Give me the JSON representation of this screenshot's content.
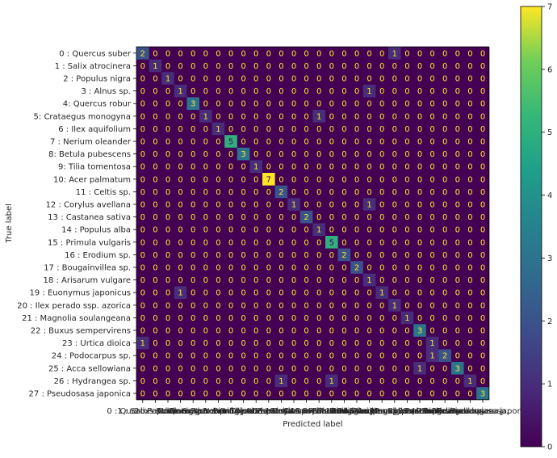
{
  "chart_data": {
    "type": "heatmap",
    "title": "",
    "xlabel": "Predicted label",
    "ylabel": "True label",
    "labels": [
      "0 : Quercus suber",
      "1 : Salix atrocinera",
      "2 : Populus nigra",
      "3 : Alnus sp.",
      "4: Quercus robur",
      "5: Crataegus monogyna",
      "6 : Ilex aquifolium",
      "7 : Nerium oleander",
      "8: Betula pubescens",
      "9: Tilia tomentosa",
      "10: Acer palmatum",
      "11 : Celtis sp.",
      "12 : Corylus avellana",
      "13 : Castanea sativa",
      "14 : Populus alba",
      "15 : Primula vulgaris",
      "16 : Erodium sp.",
      "17 : Bougainvillea sp.",
      "18 : Arisarum vulgare",
      "19 : Euonymus japonicus",
      "20 : Ilex perado ssp. azorica",
      "21 : Magnolia soulangeana",
      "22 : Buxus sempervirens",
      "23 : Urtica dioica",
      "24 : Podocarpus sp.",
      "25 : Acca sellowiana",
      "26 : Hydrangea sp.",
      "27 : Pseudosasa japonica"
    ],
    "nonzero": [
      [
        0,
        0,
        2
      ],
      [
        0,
        20,
        1
      ],
      [
        1,
        1,
        1
      ],
      [
        2,
        2,
        1
      ],
      [
        3,
        3,
        1
      ],
      [
        3,
        18,
        1
      ],
      [
        4,
        4,
        3
      ],
      [
        5,
        5,
        1
      ],
      [
        5,
        14,
        1
      ],
      [
        6,
        6,
        1
      ],
      [
        7,
        7,
        5
      ],
      [
        8,
        8,
        3
      ],
      [
        9,
        9,
        1
      ],
      [
        10,
        10,
        7
      ],
      [
        11,
        11,
        2
      ],
      [
        12,
        12,
        1
      ],
      [
        12,
        18,
        1
      ],
      [
        13,
        13,
        2
      ],
      [
        14,
        14,
        1
      ],
      [
        15,
        15,
        5
      ],
      [
        16,
        16,
        2
      ],
      [
        17,
        17,
        2
      ],
      [
        18,
        18,
        1
      ],
      [
        19,
        3,
        1
      ],
      [
        19,
        19,
        1
      ],
      [
        20,
        20,
        1
      ],
      [
        21,
        21,
        1
      ],
      [
        22,
        22,
        3
      ],
      [
        23,
        0,
        1
      ],
      [
        23,
        23,
        1
      ],
      [
        24,
        23,
        1
      ],
      [
        24,
        24,
        2
      ],
      [
        25,
        22,
        1
      ],
      [
        25,
        25,
        3
      ],
      [
        26,
        11,
        1
      ],
      [
        26,
        15,
        1
      ],
      [
        26,
        26,
        1
      ],
      [
        27,
        27,
        3
      ]
    ],
    "colorbar": {
      "min": 0,
      "max": 7,
      "ticks": [
        0,
        1,
        2,
        3,
        4,
        5,
        6,
        7
      ],
      "colormap": "viridis"
    }
  }
}
